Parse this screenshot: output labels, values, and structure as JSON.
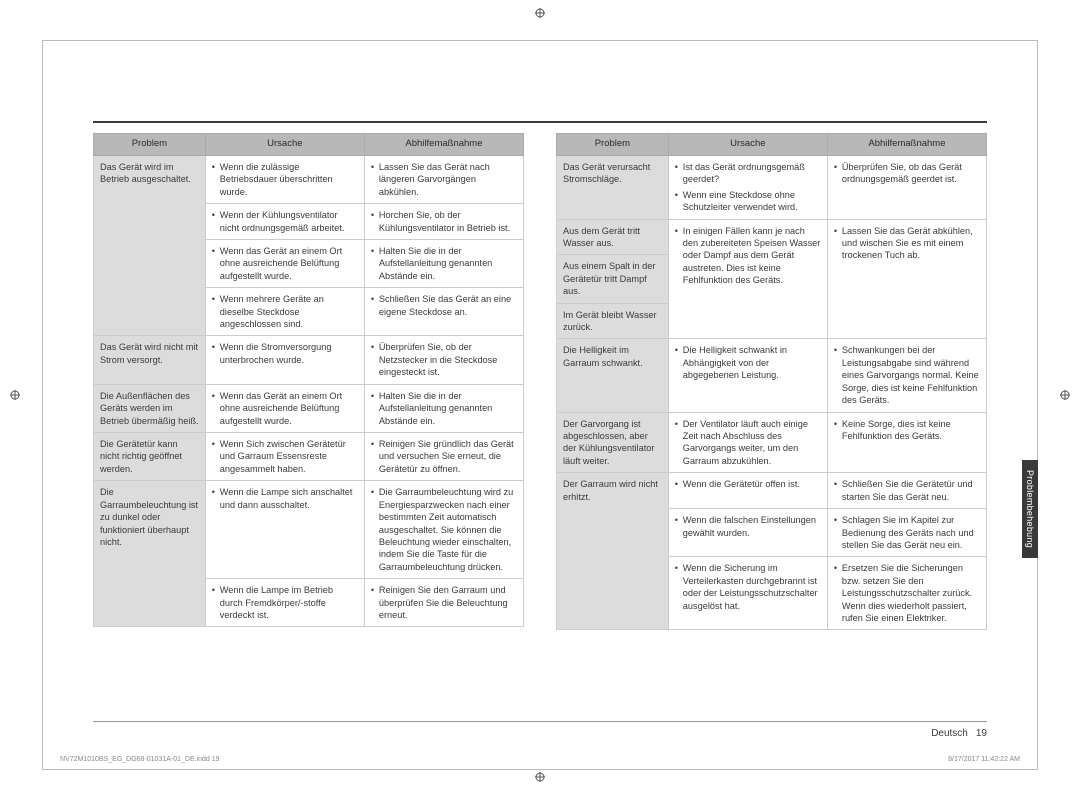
{
  "headers": {
    "problem": "Problem",
    "cause": "Ursache",
    "remedy": "Abhilfemaßnahme"
  },
  "left": {
    "rows": [
      {
        "problem": "Das Gerät wird im Betrieb ausgeschaltet.",
        "pairs": [
          {
            "cause": "Wenn die zulässige Betriebsdauer überschritten wurde.",
            "remedy": "Lassen Sie das Gerät nach längeren Garvorgängen abkühlen."
          },
          {
            "cause": "Wenn der Kühlungsventilator nicht ordnungsgemäß arbeitet.",
            "remedy": "Horchen Sie, ob der Kühlungsventilator in Betrieb ist."
          },
          {
            "cause": "Wenn das Gerät an einem Ort ohne ausreichende Belüftung aufgestellt wurde.",
            "remedy": "Halten Sie die in der Aufstellanleitung genannten Abstände ein."
          },
          {
            "cause": "Wenn mehrere Geräte an dieselbe Steckdose angeschlossen sind.",
            "remedy": "Schließen Sie das Gerät an eine eigene Steckdose an."
          }
        ]
      },
      {
        "problem": "Das Gerät wird nicht mit Strom versorgt.",
        "pairs": [
          {
            "cause": "Wenn die Stromversorgung unterbrochen wurde.",
            "remedy": "Überprüfen Sie, ob der Netzstecker in die Steckdose eingesteckt ist."
          }
        ]
      },
      {
        "problem": "Die Außenflächen des Geräts werden im Betrieb übermäßig heiß.",
        "pairs": [
          {
            "cause": "Wenn das Gerät an einem Ort ohne ausreichende Belüftung aufgestellt wurde.",
            "remedy": "Halten Sie die in der Aufstellanleitung genannten Abstände ein."
          }
        ]
      },
      {
        "problem": "Die Gerätetür kann nicht richtig geöffnet werden.",
        "pairs": [
          {
            "cause": "Wenn Sich zwischen Gerätetür und Garraum Essensreste angesammelt haben.",
            "remedy": "Reinigen Sie gründlich das Gerät und versuchen Sie erneut, die Gerätetür zu öffnen."
          }
        ]
      },
      {
        "problem": "Die Garraumbeleuchtung ist zu dunkel oder funktioniert überhaupt nicht.",
        "pairs": [
          {
            "cause": "Wenn die Lampe sich anschaltet und dann ausschaltet.",
            "remedy": "Die Garraumbeleuchtung wird zu Energiesparzwecken nach einer bestimmten Zeit automatisch ausgeschaltet. Sie können die Beleuchtung wieder einschalten, indem Sie die Taste für die Garraumbeleuchtung drücken."
          },
          {
            "cause": "Wenn die Lampe im Betrieb durch Fremdkörper/-stoffe verdeckt ist.",
            "remedy": "Reinigen Sie den Garraum und überprüfen Sie die Beleuchtung erneut."
          }
        ]
      }
    ]
  },
  "right": {
    "rows": [
      {
        "problem": "Das Gerät verursacht Stromschläge.",
        "causes": [
          "Ist das Gerät ordnungsgemäß geerdet?",
          "Wenn eine Steckdose ohne Schutzleiter verwendet wird."
        ],
        "remedies": [
          "Überprüfen Sie, ob das Gerät ordnungsgemäß geerdet ist."
        ]
      },
      {
        "problems": [
          "Aus dem Gerät tritt Wasser aus.",
          "Aus einem Spalt in der Gerätetür tritt Dampf aus.",
          "Im Gerät bleibt Wasser zurück."
        ],
        "causes": [
          "In einigen Fällen kann je nach den zubereiteten Speisen Wasser oder Dampf aus dem Gerät austreten. Dies ist keine Fehlfunktion des Geräts."
        ],
        "remedies": [
          "Lassen Sie das Gerät abkühlen, und wischen Sie es mit einem trockenen Tuch ab."
        ]
      },
      {
        "problem": "Die Helligkeit im Garraum schwankt.",
        "causes": [
          "Die Helligkeit schwankt in Abhängigkeit von der abgegebenen Leistung."
        ],
        "remedies": [
          "Schwankungen bei der Leistungsabgabe sind während eines Garvorgangs normal. Keine Sorge, dies ist keine Fehlfunktion des Geräts."
        ]
      },
      {
        "problem": "Der Garvorgang ist abgeschlossen, aber der Kühlungsventilator läuft weiter.",
        "causes": [
          "Der Ventilator läuft auch einige Zeit nach Abschluss des Garvorgangs weiter, um den Garraum abzukühlen."
        ],
        "remedies": [
          "Keine Sorge, dies ist keine Fehlfunktion des Geräts."
        ]
      },
      {
        "problem": "Der Garraum wird nicht erhitzt.",
        "pairs": [
          {
            "cause": "Wenn die Gerätetür offen ist.",
            "remedy": "Schließen Sie die Gerätetür und starten Sie das Gerät neu."
          },
          {
            "cause": "Wenn die falschen Einstellungen gewählt wurden.",
            "remedy": "Schlagen Sie im Kapitel zur Bedienung des Geräts nach und stellen Sie das Gerät neu ein."
          },
          {
            "cause": "Wenn die Sicherung im Verteilerkasten durchgebrannt ist oder der Leistungsschutzschalter ausgelöst hat.",
            "remedy": "Ersetzen Sie die Sicherungen bzw. setzen Sie den Leistungsschutzschalter zurück. Wenn dies wiederholt passiert, rufen Sie einen Elektriker."
          }
        ]
      }
    ]
  },
  "footer": {
    "lang": "Deutsch",
    "page": "19"
  },
  "sideTab": "Problembehebung",
  "imprint": {
    "file": "NV72M1010BS_EG_DG68-01031A-01_DE.indd   19",
    "date": "8/17/2017   11:42:22 AM"
  }
}
